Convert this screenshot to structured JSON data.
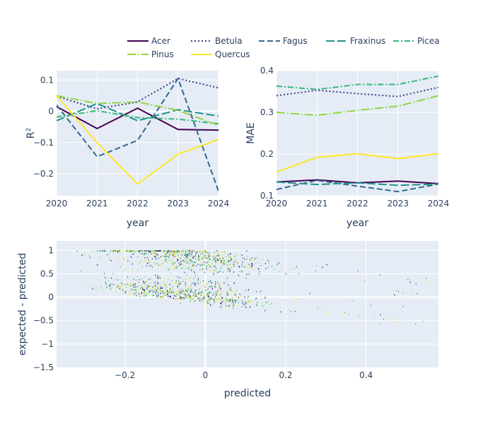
{
  "colors": {
    "Acer": "#440154",
    "Betula": "#443983",
    "Fagus": "#31688e",
    "Fraxinus": "#21918c",
    "Picea": "#35b779",
    "Pinus": "#90d743",
    "Quercus": "#fde725"
  },
  "legend": [
    {
      "name": "Acer",
      "dash": "solid"
    },
    {
      "name": "Betula",
      "dash": "dot"
    },
    {
      "name": "Fagus",
      "dash": "dash"
    },
    {
      "name": "Fraxinus",
      "dash": "longdash"
    },
    {
      "name": "Picea",
      "dash": "dashdot"
    },
    {
      "name": "Pinus",
      "dash": "longdashdot"
    },
    {
      "name": "Quercus",
      "dash": "solid"
    }
  ],
  "chart_data": [
    {
      "type": "line",
      "xlabel": "year",
      "ylabel": "R²",
      "ylabel_main": "R",
      "ylabel_sup": "2",
      "x": [
        2020,
        2021,
        2022,
        2023,
        2024
      ],
      "xlim": [
        2020,
        2024
      ],
      "ylim": [
        -0.27,
        0.13
      ],
      "xticks": [
        "2020",
        "2021",
        "2022",
        "2023",
        "2024"
      ],
      "yticks": [
        0.1,
        0,
        -0.1,
        -0.2
      ],
      "ytick_labels": [
        "0.1",
        "0",
        "−0.1",
        "−0.2"
      ],
      "series": [
        {
          "name": "Acer",
          "values": [
            0.015,
            -0.055,
            0.01,
            -0.058,
            -0.06
          ]
        },
        {
          "name": "Betula",
          "values": [
            0.048,
            0.008,
            0.03,
            0.105,
            0.075
          ]
        },
        {
          "name": "Fagus",
          "values": [
            0.02,
            -0.145,
            -0.093,
            0.105,
            -0.255
          ]
        },
        {
          "name": "Fraxinus",
          "values": [
            -0.03,
            0.025,
            -0.03,
            0.005,
            -0.015
          ]
        },
        {
          "name": "Picea",
          "values": [
            -0.018,
            0.002,
            -0.02,
            -0.025,
            -0.04
          ]
        },
        {
          "name": "Pinus",
          "values": [
            0.05,
            0.025,
            0.03,
            0.003,
            -0.045
          ]
        },
        {
          "name": "Quercus",
          "values": [
            0.05,
            -0.1,
            -0.233,
            -0.137,
            -0.09
          ]
        }
      ]
    },
    {
      "type": "line",
      "xlabel": "year",
      "ylabel": "MAE",
      "x": [
        2020,
        2021,
        2022,
        2023,
        2024
      ],
      "xlim": [
        2020,
        2024
      ],
      "ylim": [
        0.1,
        0.4
      ],
      "xticks": [
        "2020",
        "2021",
        "2022",
        "2023",
        "2024"
      ],
      "yticks": [
        0.1,
        0.2,
        0.3,
        0.4
      ],
      "ytick_labels": [
        "0.1",
        "0.2",
        "0.3",
        "0.4"
      ],
      "series": [
        {
          "name": "Acer",
          "values": [
            0.133,
            0.138,
            0.131,
            0.135,
            0.129
          ]
        },
        {
          "name": "Betula",
          "values": [
            0.34,
            0.353,
            0.345,
            0.338,
            0.36
          ]
        },
        {
          "name": "Fagus",
          "values": [
            0.115,
            0.137,
            0.123,
            0.11,
            0.128
          ]
        },
        {
          "name": "Fraxinus",
          "values": [
            0.133,
            0.127,
            0.131,
            0.125,
            0.128
          ]
        },
        {
          "name": "Picea",
          "values": [
            0.363,
            0.355,
            0.367,
            0.367,
            0.387
          ]
        },
        {
          "name": "Pinus",
          "values": [
            0.3,
            0.293,
            0.305,
            0.315,
            0.34
          ]
        },
        {
          "name": "Quercus",
          "values": [
            0.157,
            0.192,
            0.201,
            0.189,
            0.201
          ]
        }
      ]
    },
    {
      "type": "scatter",
      "xlabel": "predicted",
      "ylabel": "expected - predicted",
      "xlim": [
        -0.37,
        0.58
      ],
      "ylim": [
        -1.5,
        1.2
      ],
      "xticks": [
        -0.2,
        0,
        0.2,
        0.4
      ],
      "xtick_labels": [
        "−0.2",
        "0",
        "0.2",
        "0.4"
      ],
      "yticks": [
        1,
        0.5,
        0,
        -0.5,
        -1,
        -1.5
      ],
      "ytick_labels": [
        "1",
        "0.5",
        "0",
        "−0.5",
        "−1",
        "−1.5"
      ],
      "description_series": "Each point is one prediction, colored by species; points lie on two bands along the lines y = -x and y = 0.9 - x."
    }
  ]
}
